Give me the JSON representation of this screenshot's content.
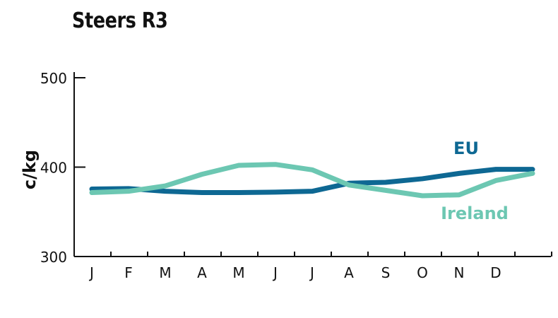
{
  "chart_data": {
    "type": "line",
    "title": "Steers R3",
    "ylabel": "c/kg",
    "xlabel": "",
    "ylim": [
      300,
      500
    ],
    "yticks": [
      "300",
      "400",
      "500"
    ],
    "categories": [
      "J",
      "F",
      "M",
      "A",
      "M",
      "J",
      "J",
      "A",
      "S",
      "O",
      "N",
      "D",
      ""
    ],
    "grid": false,
    "series": [
      {
        "name": "EU",
        "color": "#0e6893",
        "values": [
          375.5,
          376,
          373,
          371.5,
          371.5,
          372,
          373,
          382,
          383,
          387,
          393,
          397.5,
          397.5
        ]
      },
      {
        "name": "Ireland",
        "color": "#6cc7b2",
        "values": [
          371.5,
          373,
          379,
          392,
          402,
          403,
          397,
          380,
          374,
          368,
          369,
          385,
          393
        ]
      }
    ]
  }
}
